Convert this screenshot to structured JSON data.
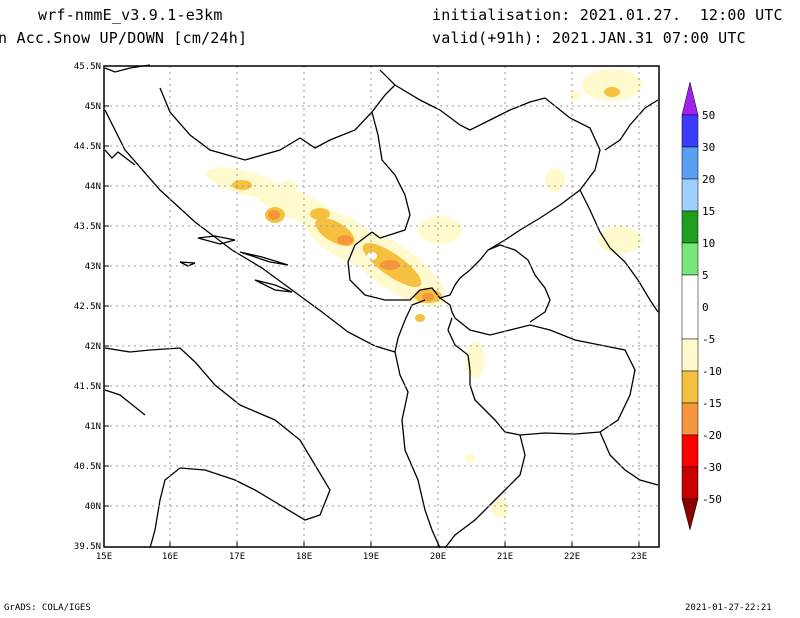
{
  "header": {
    "model": "wrf-nmmE_v3.9.1-e3km",
    "field": "n Acc.Snow UP/DOWN [cm/24h]",
    "initialisation": "initialisation: 2021.01.27.  12:00 UTC",
    "valid": "valid(+91h): 2021.JAN.31 07:00 UTC"
  },
  "map": {
    "lon_range": [
      15,
      23.3
    ],
    "lat_range": [
      39.5,
      45.5
    ],
    "lon_ticks": [
      "15E",
      "16E",
      "17E",
      "18E",
      "19E",
      "20E",
      "21E",
      "22E",
      "23E"
    ],
    "lat_ticks": [
      "39.5N",
      "40N",
      "40.5N",
      "41N",
      "41.5N",
      "42N",
      "42.5N",
      "43N",
      "43.5N",
      "44N",
      "44.5N",
      "45N",
      "45.5N"
    ],
    "grid": true
  },
  "colorbar": {
    "labels": [
      "50",
      "30",
      "20",
      "15",
      "10",
      "5",
      "0",
      "-5",
      "-10",
      "-15",
      "-20",
      "-30",
      "-50"
    ],
    "colors": {
      "top_arrow": "#a020f0",
      "c30_50": "#3c3cff",
      "c20_30": "#5aa0f0",
      "c15_20": "#9ed0ff",
      "c10_15": "#1e9e1e",
      "c5_10": "#78e678",
      "neutral": "#ffffff",
      "m5_10": "#fffacd",
      "m10_15": "#f5c040",
      "m15_20": "#f5963c",
      "m20_30": "#ff0000",
      "m30_50": "#c80000",
      "bottom_arrow": "#8b0000"
    }
  },
  "footer": {
    "left": "GrADS: COLA/IGES",
    "right": "2021-01-27-22:21"
  }
}
